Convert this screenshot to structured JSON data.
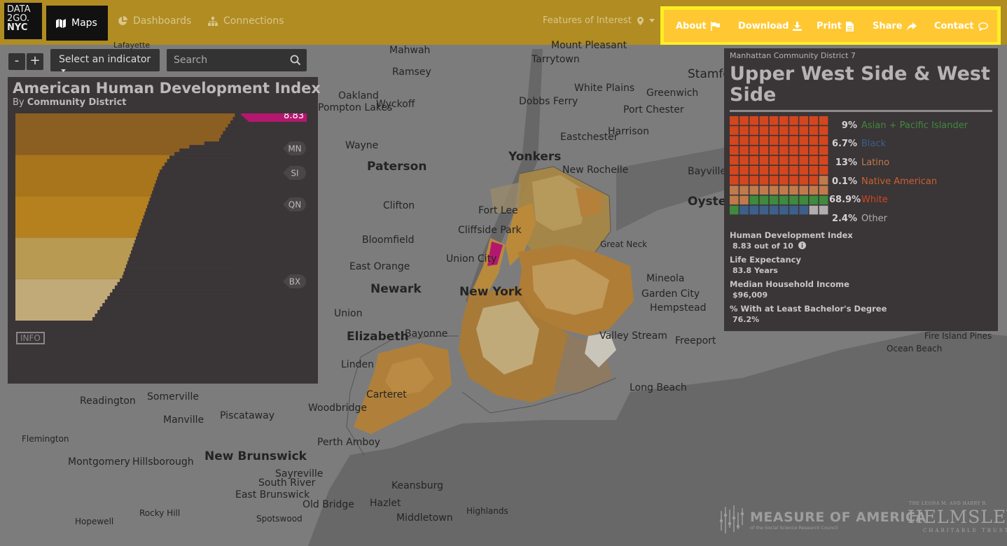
{
  "logo": {
    "line1": "DATA",
    "line2": "2GO.",
    "line3": "NYC"
  },
  "nav": {
    "maps": "Maps",
    "dashboards": "Dashboards",
    "connections": "Connections",
    "features": "Features of Interest",
    "about": "About",
    "download": "Download",
    "print": "Print",
    "share": "Share",
    "contact": "Contact"
  },
  "toolbar": {
    "zoom_out": "-",
    "zoom_in": "+",
    "indicator": "Select an indicator",
    "search_placeholder": "Search"
  },
  "left_panel": {
    "title": "American Human Development Index",
    "subtitle_prefix": "By",
    "subtitle_bold": "Community District",
    "selected_value": "8.83",
    "borough_labels": [
      "MN",
      "SI",
      "QN",
      "BX"
    ],
    "info": "INFO"
  },
  "chart_data": {
    "type": "bar",
    "title": "American Human Development Index",
    "subtitle": "By Community District",
    "orientation": "horizontal",
    "sorted": "descending",
    "bar_count": 59,
    "xlim": [
      0,
      10
    ],
    "values": [
      8.83,
      8.75,
      8.65,
      8.55,
      8.45,
      8.35,
      8.27,
      8.2,
      7.6,
      7.0,
      6.6,
      6.4,
      6.2,
      6.1,
      6.0,
      5.9,
      5.8,
      5.75,
      5.7,
      5.65,
      5.6,
      5.55,
      5.5,
      5.45,
      5.4,
      5.35,
      5.3,
      5.25,
      5.2,
      5.15,
      5.1,
      5.05,
      5.0,
      4.95,
      4.9,
      4.85,
      4.8,
      4.75,
      4.7,
      4.65,
      4.6,
      4.55,
      4.5,
      4.45,
      4.4,
      4.35,
      4.3,
      4.2,
      4.1,
      4.0,
      3.9,
      3.8,
      3.7,
      3.6,
      3.5,
      3.4,
      3.3,
      3.2,
      3.1
    ],
    "highlight_index": 0,
    "band_colors": [
      "#8b5e22",
      "#a8741c",
      "#b5801e",
      "#b89a52",
      "#c2aa78"
    ]
  },
  "district": {
    "name_small": "Manhattan Community District 7",
    "name": "Upper West Side & West Side",
    "demographics": [
      {
        "pct": "9%",
        "label": "Asian + Pacific Islander",
        "color": "#3f8a3c",
        "count": 9
      },
      {
        "pct": "6.7%",
        "label": "Black",
        "color": "#3d5f8a",
        "count": 7
      },
      {
        "pct": "13%",
        "label": "Latino",
        "color": "#c07a4c",
        "count": 13
      },
      {
        "pct": "0.1%",
        "label": "Native American",
        "color": "#c9612e",
        "count": 0
      },
      {
        "pct": "68.9%",
        "label": "White",
        "color": "#d4461e",
        "count": 69
      },
      {
        "pct": "2.4%",
        "label": "Other",
        "color": "#b1adaf",
        "count": 2
      }
    ],
    "stats": [
      {
        "label": "Human Development Index",
        "value": "8.83 out of 10"
      },
      {
        "label": "Life Expectancy",
        "value": "83.8 Years"
      },
      {
        "label": "Median Household Income",
        "value": "$96,009"
      },
      {
        "label": "% With at Least Bachelor's Degree",
        "value": "76.2%"
      }
    ]
  },
  "map_labels": [
    "Lafayette",
    "Mahwah",
    "Mount Pleasant",
    "Ramsey",
    "Tarrytown",
    "Oakland",
    "Wyckoff",
    "White Plains",
    "Greenwich",
    "Stamford",
    "Pompton Lakes",
    "Dobbs Ferry",
    "Port Chester",
    "Harrison",
    "Wayne",
    "Eastchester",
    "Yonkers",
    "Paterson",
    "New Rochelle",
    "Bayville",
    "Oyster Bay",
    "Clifton",
    "Fort Lee",
    "Cliffside Park",
    "Bloomfield",
    "Great Neck",
    "Union City",
    "East Orange",
    "Mineola",
    "Newark",
    "New York",
    "Garden City",
    "Hempstead",
    "Union",
    "Elizabeth",
    "Bayonne",
    "Valley Stream",
    "Freeport",
    "Fire Island Pines",
    "Linden",
    "Ocean Beach",
    "Carteret",
    "Long Beach",
    "Readington",
    "Somerville",
    "Woodbridge",
    "Manville",
    "Piscataway",
    "Flemington",
    "Perth Amboy",
    "Montgomery",
    "Hillsborough",
    "New Brunswick",
    "Sayreville",
    "South River",
    "East Brunswick",
    "Keansburg",
    "Old Bridge",
    "Hazlet",
    "Highlands",
    "Rocky Hill",
    "Hopewell",
    "Spotswood",
    "Middletown"
  ],
  "logos": {
    "moa_name": "MEASURE OF AMERICA",
    "moa_sub": "of the Social Science Research Council",
    "helmsley_top": "THE LEONA M. AND HARRY B.",
    "helmsley_name": "HELMSLEY",
    "helmsley_bottom": "CHARITABLE TRUST"
  },
  "colors": {
    "nav": "#b08c22",
    "highlight": "#ffc832",
    "highlight_border": "#ffee22",
    "panel": "#3a3537",
    "selected_district": "#b4186e"
  }
}
